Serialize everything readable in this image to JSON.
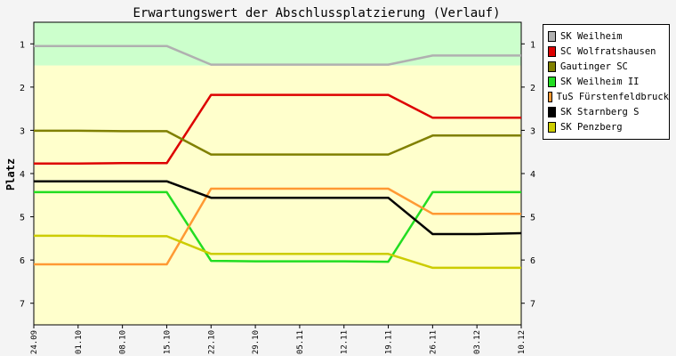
{
  "chart_data": {
    "type": "line",
    "title": "Erwartungswert der Abschlussplatzierung (Verlauf)",
    "ylabel": "Platz",
    "xlabel": "",
    "categories": [
      "24.09",
      "01.10",
      "08.10",
      "15.10",
      "22.10",
      "29.10",
      "05.11",
      "12.11",
      "19.11",
      "26.11",
      "03.12",
      "10.12"
    ],
    "yticks": [
      1,
      2,
      3,
      4,
      5,
      6,
      7
    ],
    "ylim": [
      0.5,
      7.5
    ],
    "y_inverted": true,
    "grid": false,
    "legend_position": "right",
    "bands": [
      {
        "from": 0.5,
        "to": 1.5,
        "color": "#ccffcc"
      },
      {
        "from": 1.5,
        "to": 7.5,
        "color": "#ffffcc"
      }
    ],
    "series": [
      {
        "name": "SK Weilheim",
        "color": "#b0b0b0",
        "values": [
          1.05,
          1.05,
          1.05,
          1.05,
          1.48,
          1.48,
          1.48,
          1.48,
          1.48,
          1.27,
          1.27,
          1.27
        ]
      },
      {
        "name": "SC Wolfratshausen",
        "color": "#dd0000",
        "values": [
          3.77,
          3.77,
          3.76,
          3.76,
          2.18,
          2.18,
          2.18,
          2.18,
          2.18,
          2.71,
          2.71,
          2.71
        ]
      },
      {
        "name": "Gautinger SC",
        "color": "#808000",
        "values": [
          3.01,
          3.01,
          3.02,
          3.02,
          3.56,
          3.56,
          3.56,
          3.56,
          3.56,
          3.12,
          3.12,
          3.12
        ]
      },
      {
        "name": "SK Weilheim II",
        "color": "#22dd22",
        "values": [
          4.43,
          4.43,
          4.43,
          4.43,
          6.02,
          6.03,
          6.03,
          6.03,
          6.04,
          4.43,
          4.43,
          4.43
        ]
      },
      {
        "name": "TuS Fürstenfeldbruck",
        "color": "#ff9933",
        "values": [
          6.1,
          6.1,
          6.1,
          6.1,
          4.35,
          4.35,
          4.35,
          4.35,
          4.35,
          4.93,
          4.93,
          4.93
        ]
      },
      {
        "name": "SK Starnberg S",
        "color": "#000000",
        "values": [
          4.18,
          4.18,
          4.18,
          4.18,
          4.56,
          4.56,
          4.56,
          4.56,
          4.56,
          5.4,
          5.4,
          5.38
        ]
      },
      {
        "name": "SK Penzberg",
        "color": "#cccc00",
        "values": [
          5.44,
          5.44,
          5.45,
          5.45,
          5.86,
          5.86,
          5.86,
          5.86,
          5.86,
          6.18,
          6.18,
          6.18
        ]
      }
    ]
  }
}
